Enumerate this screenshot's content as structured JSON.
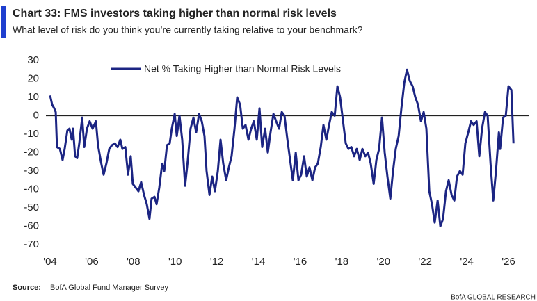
{
  "chart_data": {
    "type": "line",
    "title": "Chart 33: FMS investors taking higher than normal risk levels",
    "subtitle": "What level of risk do you think you’re currently taking relative to your benchmark?",
    "source_label": "Source:",
    "source": "BofA Global Fund Manager Survey",
    "credit": "BofA GLOBAL RESEARCH",
    "x": [
      2004.0,
      2004.1,
      2004.2,
      2004.27,
      2004.33,
      2004.47,
      2004.6,
      2004.7,
      2004.83,
      2004.93,
      2005.04,
      2005.1,
      2005.2,
      2005.3,
      2005.4,
      2005.54,
      2005.64,
      2005.77,
      2005.9,
      2006.04,
      2006.2,
      2006.3,
      2006.44,
      2006.57,
      2006.7,
      2006.84,
      2006.97,
      2007.11,
      2007.24,
      2007.37,
      2007.47,
      2007.61,
      2007.74,
      2007.87,
      2007.97,
      2008.11,
      2008.24,
      2008.37,
      2008.51,
      2008.64,
      2008.77,
      2008.87,
      2009.01,
      2009.11,
      2009.24,
      2009.38,
      2009.48,
      2009.61,
      2009.74,
      2009.84,
      2009.98,
      2010.08,
      2010.21,
      2010.34,
      2010.48,
      2010.61,
      2010.74,
      2010.88,
      2011.01,
      2011.15,
      2011.28,
      2011.41,
      2011.51,
      2011.65,
      2011.78,
      2011.91,
      2012.05,
      2012.18,
      2012.31,
      2012.45,
      2012.58,
      2012.71,
      2012.85,
      2012.98,
      2013.12,
      2013.25,
      2013.38,
      2013.52,
      2013.65,
      2013.78,
      2013.92,
      2014.05,
      2014.18,
      2014.32,
      2014.45,
      2014.58,
      2014.72,
      2014.85,
      2014.99,
      2015.12,
      2015.25,
      2015.39,
      2015.52,
      2015.65,
      2015.79,
      2015.92,
      2016.05,
      2016.19,
      2016.32,
      2016.45,
      2016.59,
      2016.72,
      2016.85,
      2016.99,
      2017.12,
      2017.26,
      2017.39,
      2017.52,
      2017.66,
      2017.79,
      2017.92,
      2018.06,
      2018.19,
      2018.32,
      2018.46,
      2018.59,
      2018.72,
      2018.86,
      2018.99,
      2019.13,
      2019.26,
      2019.39,
      2019.53,
      2019.66,
      2019.79,
      2019.93,
      2020.06,
      2020.19,
      2020.33,
      2020.46,
      2020.59,
      2020.73,
      2020.86,
      2021.0,
      2021.13,
      2021.26,
      2021.4,
      2021.53,
      2021.66,
      2021.8,
      2021.93,
      2022.06,
      2022.2,
      2022.33,
      2022.46,
      2022.6,
      2022.73,
      2022.86,
      2023.0,
      2023.13,
      2023.27,
      2023.4,
      2023.53,
      2023.67,
      2023.8,
      2023.93,
      2024.07,
      2024.2,
      2024.33,
      2024.47,
      2024.6,
      2024.73,
      2024.87,
      2025.0,
      2025.14,
      2025.27,
      2025.4,
      2025.54,
      2025.6,
      2025.74,
      2025.87,
      2026.0,
      2026.14,
      2026.24
    ],
    "series": [
      {
        "name": "Net % Taking Higher than Normal Risk Levels",
        "color": "#1c2583",
        "values": [
          11,
          6,
          4,
          2,
          -17,
          -18,
          -24,
          -18,
          -8,
          -7,
          -13,
          -7,
          -22,
          -23,
          -15,
          -1,
          -17,
          -7,
          -3,
          -7,
          -3,
          -16,
          -25,
          -32,
          -26,
          -18,
          -16,
          -15,
          -17,
          -13,
          -18,
          -17,
          -32,
          -22,
          -37,
          -39,
          -41,
          -36,
          -43,
          -48,
          -56,
          -45,
          -44,
          -48,
          -39,
          -26,
          -30,
          -16,
          -15,
          -7,
          1,
          -11,
          0,
          -13,
          -38,
          -24,
          -7,
          -1,
          -9,
          1,
          -3,
          -11,
          -30,
          -43,
          -33,
          -41,
          -30,
          -13,
          -26,
          -35,
          -28,
          -22,
          -7,
          10,
          6,
          -7,
          -5,
          -13,
          -7,
          -3,
          -13,
          4,
          -17,
          -7,
          -20,
          -9,
          1,
          -3,
          -7,
          2,
          0,
          -13,
          -24,
          -35,
          -20,
          -35,
          -32,
          -22,
          -33,
          -28,
          -35,
          -28,
          -26,
          -17,
          -5,
          -13,
          -5,
          2,
          0,
          16,
          10,
          -3,
          -15,
          -18,
          -17,
          -22,
          -18,
          -24,
          -18,
          -22,
          -20,
          -26,
          -37,
          -24,
          -18,
          -1,
          -20,
          -33,
          -45,
          -30,
          -18,
          -11,
          4,
          18,
          25,
          19,
          16,
          10,
          6,
          -3,
          2,
          -7,
          -41,
          -48,
          -58,
          -46,
          -60,
          -56,
          -41,
          -35,
          -43,
          -46,
          -33,
          -30,
          -32,
          -15,
          -9,
          -3,
          -5,
          -3,
          -22,
          -7,
          2,
          0,
          -26,
          -46,
          -30,
          -9,
          -18,
          -1,
          0,
          16,
          14,
          -15
        ]
      }
    ],
    "xlim": [
      2003.8,
      2026.5
    ],
    "xticks": [
      {
        "value": 2004,
        "label": "'04"
      },
      {
        "value": 2006,
        "label": "'06"
      },
      {
        "value": 2008,
        "label": "'08"
      },
      {
        "value": 2010,
        "label": "'10"
      },
      {
        "value": 2012,
        "label": "'12"
      },
      {
        "value": 2014,
        "label": "'14"
      },
      {
        "value": 2016,
        "label": "'16"
      },
      {
        "value": 2018,
        "label": "'18"
      },
      {
        "value": 2020,
        "label": "'20"
      },
      {
        "value": 2022,
        "label": "'22"
      },
      {
        "value": 2024,
        "label": "'24"
      },
      {
        "value": 2026,
        "label": "'26"
      }
    ],
    "ylim": [
      -70,
      30
    ],
    "yticks": [
      30,
      20,
      10,
      0,
      -10,
      -20,
      -30,
      -40,
      -50,
      -60,
      -70
    ],
    "zero_line": true
  }
}
